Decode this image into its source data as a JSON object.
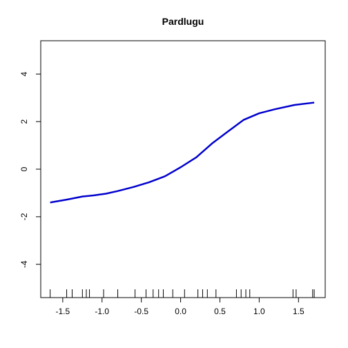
{
  "chart_data": {
    "type": "line",
    "title": "Pardlugu",
    "xlabel": "",
    "ylabel": "",
    "xlim": [
      -1.78,
      1.84
    ],
    "ylim": [
      -5.4,
      5.4
    ],
    "x_ticks": [
      -1.5,
      -1.0,
      -0.5,
      0.0,
      0.5,
      1.0,
      1.5
    ],
    "x_tick_labels": [
      "-1.5",
      "-1.0",
      "-0.5",
      "0.0",
      "0.5",
      "1.0",
      "1.5"
    ],
    "y_ticks": [
      -4,
      -2,
      0,
      2,
      4
    ],
    "y_tick_labels": [
      "-4",
      "-2",
      "0",
      "2",
      "4"
    ],
    "grid": false,
    "line_color": "#0000CD",
    "series": [
      {
        "x": [
          -1.66,
          -1.45,
          -1.25,
          -1.1,
          -0.95,
          -0.8,
          -0.6,
          -0.4,
          -0.2,
          0.0,
          0.2,
          0.4,
          0.6,
          0.8,
          1.0,
          1.2,
          1.45,
          1.7
        ],
        "y": [
          -1.4,
          -1.28,
          -1.15,
          -1.1,
          -1.03,
          -0.92,
          -0.75,
          -0.55,
          -0.3,
          0.08,
          0.5,
          1.08,
          1.58,
          2.07,
          2.35,
          2.52,
          2.7,
          2.8
        ]
      }
    ],
    "rug": [
      -1.66,
      -1.45,
      -1.38,
      -1.25,
      -1.2,
      -1.16,
      -0.98,
      -0.8,
      -0.58,
      -0.44,
      -0.35,
      -0.28,
      -0.22,
      -0.1,
      0.05,
      0.22,
      0.28,
      0.34,
      0.45,
      0.71,
      0.77,
      0.83,
      0.88,
      1.43,
      1.47,
      1.68,
      1.7
    ]
  }
}
